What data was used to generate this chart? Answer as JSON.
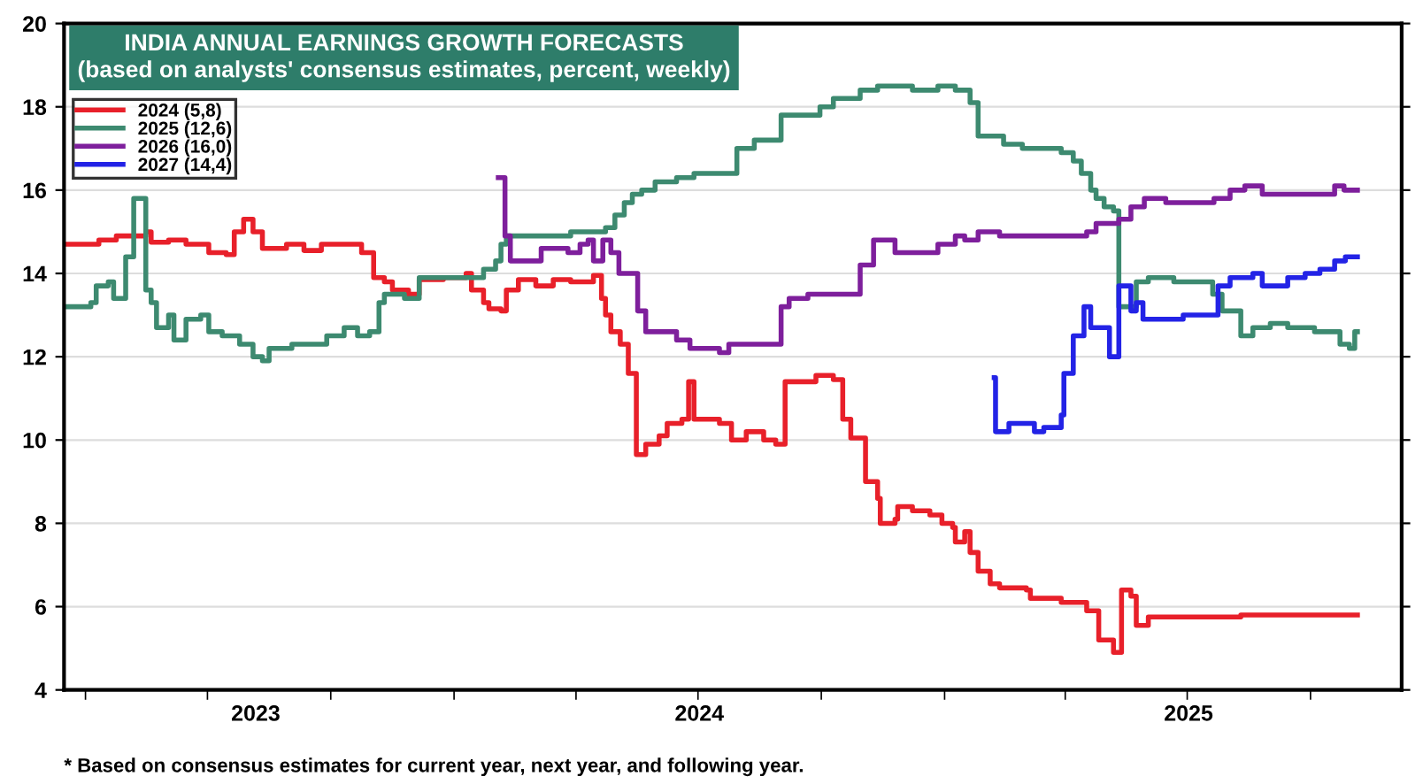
{
  "chart_data": {
    "type": "step",
    "title": "INDIA ANNUAL EARNINGS GROWTH FORECASTS",
    "subtitle": "(based on analysts' consensus estimates, percent, weekly)",
    "annotations": [
      "* Based on consensus estimates for current year, next year, and following year."
    ],
    "xlim": [
      "2023-03-16",
      "2025-12-08"
    ],
    "ylim": [
      4,
      20
    ],
    "yticks": [
      4,
      6,
      8,
      10,
      12,
      14,
      16,
      18,
      20
    ],
    "xticks": [
      {
        "value": "2023-04-01",
        "label": null
      },
      {
        "value": "2023-07-01",
        "label": null
      },
      {
        "value": "2023-10-01",
        "label": null
      },
      {
        "value": "2024-01-01",
        "label": null
      },
      {
        "value": "2024-04-01",
        "label": null
      },
      {
        "value": "2024-07-01",
        "label": null
      },
      {
        "value": "2024-10-01",
        "label": null
      },
      {
        "value": "2025-01-01",
        "label": null
      },
      {
        "value": "2025-04-01",
        "label": null
      },
      {
        "value": "2025-07-01",
        "label": null
      },
      {
        "value": "2025-10-01",
        "label": null
      },
      {
        "value": "2023-08-06",
        "label": "2023"
      },
      {
        "value": "2024-07-02",
        "label": "2024"
      },
      {
        "value": "2025-07-02",
        "label": "2025"
      }
    ],
    "grid": "y",
    "legend": "top left",
    "series": [
      {
        "name": "2024 (5,8)",
        "color": "#e8202a",
        "x": [
          "2023-03-16",
          "2023-04-11",
          "2023-04-24",
          "2023-05-16",
          "2023-05-20",
          "2023-06-02",
          "2023-06-15",
          "2023-07-02",
          "2023-07-15",
          "2023-07-21",
          "2023-07-28",
          "2023-08-04",
          "2023-08-11",
          "2023-08-29",
          "2023-09-11",
          "2023-09-24",
          "2023-10-15",
          "2023-10-24",
          "2023-11-02",
          "2023-11-10",
          "2023-11-16",
          "2023-11-28",
          "2023-12-06",
          "2023-12-24",
          "2024-01-10",
          "2024-01-14",
          "2024-01-23",
          "2024-01-27",
          "2024-02-05",
          "2024-02-09",
          "2024-02-18",
          "2024-03-02",
          "2024-03-15",
          "2024-03-28",
          "2024-04-14",
          "2024-04-20",
          "2024-04-23",
          "2024-04-27",
          "2024-05-04",
          "2024-05-10",
          "2024-05-16",
          "2024-05-23",
          "2024-06-02",
          "2024-06-08",
          "2024-06-19",
          "2024-06-24",
          "2024-06-28",
          "2024-07-17",
          "2024-07-26",
          "2024-08-06",
          "2024-08-19",
          "2024-08-28",
          "2024-09-04",
          "2024-09-27",
          "2024-10-10",
          "2024-10-17",
          "2024-10-23",
          "2024-11-03",
          "2024-11-12",
          "2024-11-14",
          "2024-11-25",
          "2024-11-27",
          "2024-12-08",
          "2024-12-21",
          "2024-12-30",
          "2025-01-07",
          "2025-01-09",
          "2025-01-16",
          "2025-01-20",
          "2025-01-26",
          "2025-02-04",
          "2025-02-11",
          "2025-03-03",
          "2025-03-06",
          "2025-03-29",
          "2025-04-17",
          "2025-04-26",
          "2025-05-07",
          "2025-05-13",
          "2025-05-20",
          "2025-05-24",
          "2025-06-02",
          "2025-08-10",
          "2025-11-05"
        ],
        "values": [
          14.7,
          14.8,
          14.9,
          15.0,
          14.75,
          14.8,
          14.7,
          14.5,
          14.45,
          15.0,
          15.3,
          15.0,
          14.6,
          14.7,
          14.55,
          14.7,
          14.7,
          14.5,
          13.9,
          13.8,
          13.6,
          13.5,
          13.85,
          13.9,
          14.0,
          13.6,
          13.3,
          13.15,
          13.1,
          13.6,
          13.85,
          13.7,
          13.85,
          13.8,
          13.95,
          13.4,
          13.0,
          12.6,
          12.3,
          11.6,
          9.65,
          9.9,
          10.1,
          10.4,
          10.5,
          11.4,
          10.5,
          10.4,
          10.0,
          10.2,
          10.0,
          9.9,
          11.4,
          11.55,
          11.45,
          10.5,
          10.05,
          9.0,
          8.6,
          8.0,
          8.1,
          8.4,
          8.3,
          8.2,
          8.0,
          7.9,
          7.55,
          7.8,
          7.3,
          6.85,
          6.55,
          6.45,
          6.4,
          6.2,
          6.1,
          5.9,
          5.2,
          4.9,
          6.4,
          6.25,
          5.55,
          5.75,
          5.8,
          5.8
        ]
      },
      {
        "name": "2025 (12,6)",
        "color": "#3d8a70",
        "x": [
          "2023-03-16",
          "2023-04-05",
          "2023-04-09",
          "2023-04-18",
          "2023-04-22",
          "2023-05-01",
          "2023-05-07",
          "2023-05-14",
          "2023-05-16",
          "2023-05-20",
          "2023-05-24",
          "2023-05-31",
          "2023-06-02",
          "2023-06-06",
          "2023-06-13",
          "2023-06-15",
          "2023-06-26",
          "2023-07-02",
          "2023-07-12",
          "2023-07-25",
          "2023-08-04",
          "2023-08-11",
          "2023-08-16",
          "2023-09-02",
          "2023-09-28",
          "2023-10-11",
          "2023-10-21",
          "2023-10-30",
          "2023-11-06",
          "2023-11-10",
          "2023-11-19",
          "2023-11-25",
          "2023-12-06",
          "2024-01-10",
          "2024-01-23",
          "2024-02-01",
          "2024-02-05",
          "2024-02-09",
          "2024-03-28",
          "2024-04-23",
          "2024-04-30",
          "2024-05-07",
          "2024-05-13",
          "2024-05-20",
          "2024-05-30",
          "2024-06-15",
          "2024-06-28",
          "2024-07-30",
          "2024-08-12",
          "2024-09-01",
          "2024-09-30",
          "2024-10-10",
          "2024-10-30",
          "2024-11-12",
          "2024-12-08",
          "2024-12-27",
          "2025-01-09",
          "2025-01-20",
          "2025-01-26",
          "2025-02-14",
          "2025-02-28",
          "2025-03-29",
          "2025-04-07",
          "2025-04-13",
          "2025-04-20",
          "2025-04-24",
          "2025-04-30",
          "2025-05-07",
          "2025-05-11",
          "2025-05-24",
          "2025-06-02",
          "2025-06-21",
          "2025-07-20",
          "2025-07-27",
          "2025-08-10",
          "2025-08-19",
          "2025-09-01",
          "2025-09-14",
          "2025-10-04",
          "2025-10-23",
          "2025-10-30",
          "2025-11-03",
          "2025-11-05"
        ],
        "values": [
          13.2,
          13.3,
          13.7,
          13.8,
          13.4,
          14.4,
          15.8,
          15.8,
          13.6,
          13.3,
          12.7,
          12.7,
          13.0,
          12.4,
          12.4,
          12.9,
          13.0,
          12.6,
          12.5,
          12.3,
          12.0,
          11.9,
          12.2,
          12.3,
          12.5,
          12.7,
          12.5,
          12.6,
          13.3,
          13.5,
          13.5,
          13.4,
          13.9,
          13.9,
          14.1,
          14.3,
          14.7,
          14.9,
          15.0,
          15.1,
          15.4,
          15.7,
          15.9,
          16.0,
          16.2,
          16.3,
          16.4,
          17.0,
          17.2,
          17.8,
          18.0,
          18.2,
          18.4,
          18.5,
          18.4,
          18.5,
          18.4,
          18.1,
          17.3,
          17.1,
          17.0,
          16.9,
          16.7,
          16.4,
          16.0,
          15.8,
          15.6,
          15.5,
          13.2,
          13.8,
          13.9,
          13.8,
          13.5,
          13.1,
          12.5,
          12.7,
          12.8,
          12.7,
          12.6,
          12.3,
          12.2,
          12.6,
          12.6
        ]
      },
      {
        "name": "2026 (16,0)",
        "color": "#7e1f9c",
        "x": [
          "2024-02-03",
          "2024-02-08",
          "2024-02-12",
          "2024-03-06",
          "2024-03-26",
          "2024-04-04",
          "2024-04-10",
          "2024-04-14",
          "2024-04-21",
          "2024-04-27",
          "2024-05-03",
          "2024-05-17",
          "2024-05-23",
          "2024-06-15",
          "2024-06-25",
          "2024-07-17",
          "2024-07-24",
          "2024-09-01",
          "2024-09-07",
          "2024-09-21",
          "2024-10-30",
          "2024-11-09",
          "2024-11-25",
          "2024-12-27",
          "2025-01-09",
          "2025-01-16",
          "2025-01-26",
          "2025-02-11",
          "2025-04-17",
          "2025-04-24",
          "2025-05-11",
          "2025-05-20",
          "2025-05-30",
          "2025-06-15",
          "2025-07-21",
          "2025-08-02",
          "2025-08-13",
          "2025-08-26",
          "2025-10-10",
          "2025-10-19",
          "2025-10-26",
          "2025-11-05"
        ],
        "values": [
          16.3,
          14.9,
          14.3,
          14.6,
          14.5,
          14.7,
          14.8,
          14.3,
          14.8,
          14.5,
          14.0,
          13.1,
          12.6,
          12.4,
          12.2,
          12.1,
          12.3,
          13.2,
          13.4,
          13.5,
          14.2,
          14.8,
          14.5,
          14.7,
          14.9,
          14.8,
          15.0,
          14.9,
          15.0,
          15.2,
          15.3,
          15.6,
          15.8,
          15.7,
          15.8,
          16.0,
          16.1,
          15.9,
          15.9,
          16.1,
          16.0,
          16.0
        ]
      },
      {
        "name": "2027 (14,4)",
        "color": "#2323e6",
        "x": [
          "2025-02-07",
          "2025-02-08",
          "2025-02-18",
          "2025-03-09",
          "2025-03-16",
          "2025-03-29",
          "2025-03-31",
          "2025-04-07",
          "2025-04-15",
          "2025-04-20",
          "2025-05-04",
          "2025-05-11",
          "2025-05-20",
          "2025-05-24",
          "2025-05-29",
          "2025-06-28",
          "2025-07-24",
          "2025-08-02",
          "2025-08-19",
          "2025-08-26",
          "2025-09-14",
          "2025-09-27",
          "2025-10-08",
          "2025-10-19",
          "2025-10-27",
          "2025-11-05"
        ],
        "values": [
          11.5,
          10.2,
          10.4,
          10.2,
          10.3,
          10.6,
          11.6,
          12.5,
          13.2,
          12.7,
          12.0,
          13.7,
          13.1,
          13.3,
          12.9,
          13.0,
          13.7,
          13.9,
          14.0,
          13.7,
          13.9,
          14.0,
          14.1,
          14.3,
          14.4,
          14.4
        ]
      }
    ]
  }
}
